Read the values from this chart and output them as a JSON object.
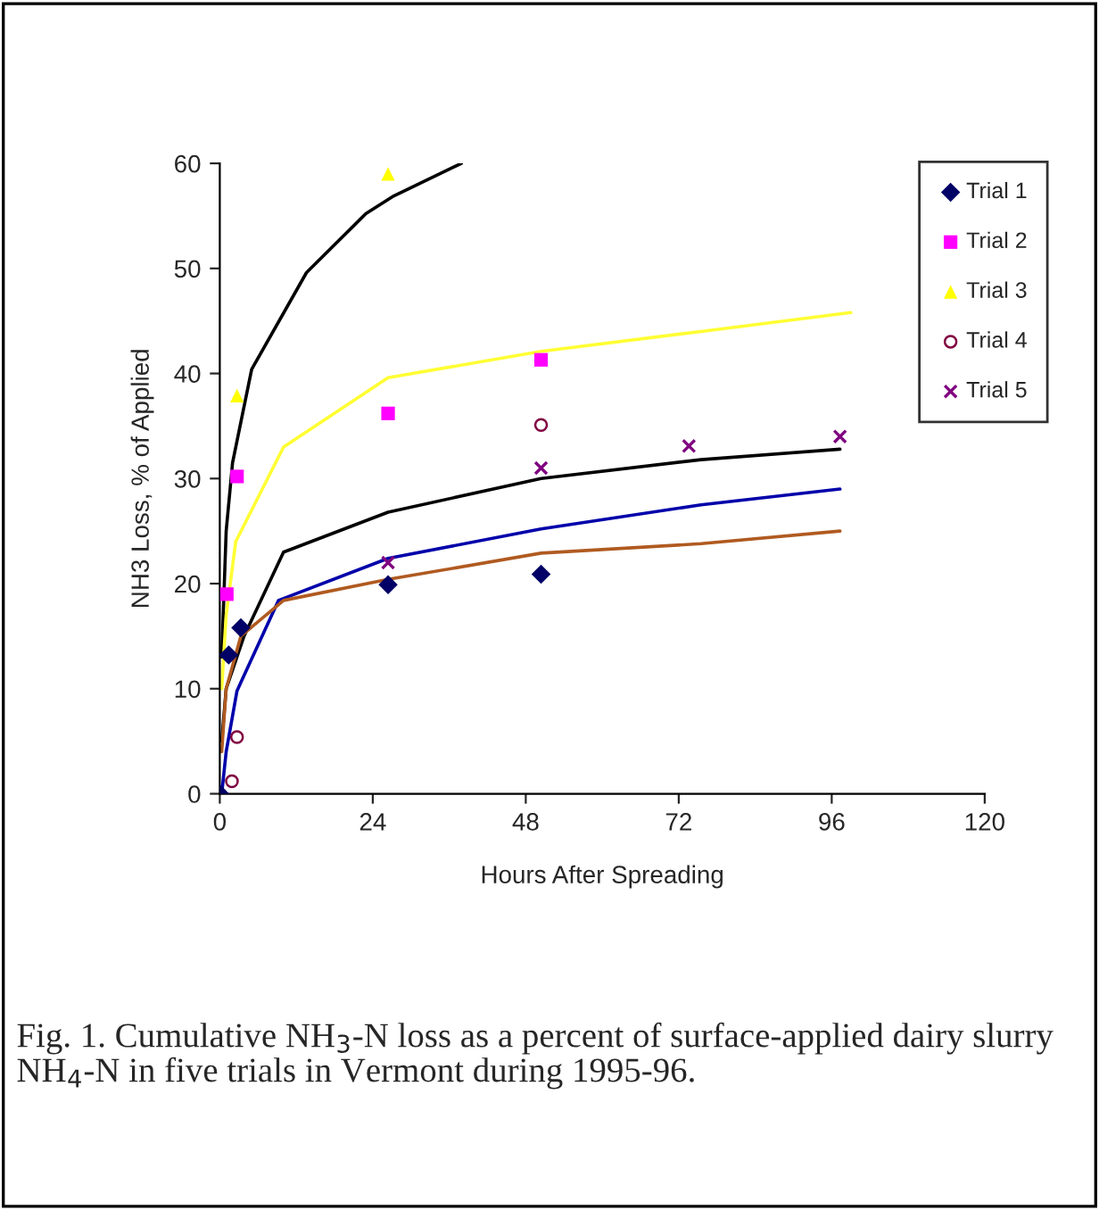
{
  "chart_data": {
    "type": "scatter",
    "xlabel": "Hours After Spreading",
    "ylabel": "NH3 Loss, % of Applied",
    "annotations": [
      "Fig. 1. Cumulative NH$_{3}$-N loss as a percent of surface-applied dairy slurry NH$_{4}$-N in five trials in Vermont during 1995-96."
    ],
    "xlim": [
      0,
      120
    ],
    "xticks": [
      0,
      24,
      48,
      72,
      96,
      120
    ],
    "ylim": [
      0,
      60
    ],
    "yticks": [
      0,
      10,
      20,
      30,
      40,
      50,
      60
    ],
    "grid": false,
    "legend": "top right",
    "series": [
      {
        "name": "Trial 1",
        "color": "#000066",
        "marker": "diamond",
        "x": [
          0,
          1.4,
          3.3,
          26.4,
          50.4
        ],
        "values": [
          0,
          13.2,
          15.8,
          19.9,
          20.9
        ]
      },
      {
        "name": "Trial 2",
        "color": "#ff00ff",
        "marker": "square",
        "x": [
          1.1,
          2.7,
          26.4,
          50.4
        ],
        "values": [
          19,
          30.2,
          36.2,
          41.3
        ]
      },
      {
        "name": "Trial 3",
        "color": "#ffff00",
        "marker": "triangle",
        "x": [
          2.7,
          26.4
        ],
        "values": [
          37.9,
          59
        ]
      },
      {
        "name": "Trial 4",
        "color": "#800040",
        "marker": "circle",
        "x": [
          1.9,
          2.7,
          50.4
        ],
        "values": [
          1.2,
          5.4,
          35.1
        ]
      },
      {
        "name": "Trial 5",
        "color": "#800080",
        "marker": "cross",
        "x": [
          26.4,
          50.4,
          73.6,
          97.3
        ],
        "values": [
          22,
          31,
          33.1,
          34
        ]
      },
      {
        "type": "line",
        "color": "#000000",
        "x": [
          0.3,
          1,
          2,
          5,
          13.6,
          22.9,
          27.3,
          37.9
        ],
        "values": [
          13,
          25,
          31.5,
          40.4,
          49.6,
          55.2,
          56.9,
          60
        ]
      },
      {
        "type": "line",
        "color": "#ffff33",
        "x": [
          0.3,
          1,
          2.5,
          10,
          26.4,
          50.4,
          75.5,
          99
        ],
        "values": [
          10,
          17,
          24,
          33,
          39.6,
          42.1,
          44,
          45.8
        ]
      },
      {
        "type": "line",
        "color": "#000000",
        "x": [
          0.3,
          1,
          3.8,
          10,
          26.4,
          50.4,
          75.5,
          97.3
        ],
        "values": [
          5,
          10,
          15,
          23,
          26.8,
          30,
          31.8,
          32.8
        ]
      },
      {
        "type": "line",
        "color": "#0000aa",
        "x": [
          0.3,
          1,
          2.7,
          9.2,
          26.4,
          50.4,
          75.5,
          97.3
        ],
        "values": [
          0,
          4,
          9.8,
          18.4,
          22.4,
          25.2,
          27.5,
          29
        ]
      },
      {
        "type": "line",
        "color": "#b05a20",
        "x": [
          0.3,
          1,
          3.3,
          10,
          26.4,
          50.4,
          75.5,
          97.3
        ],
        "values": [
          4,
          10,
          15,
          18.4,
          20.4,
          22.9,
          23.8,
          25
        ]
      }
    ]
  }
}
